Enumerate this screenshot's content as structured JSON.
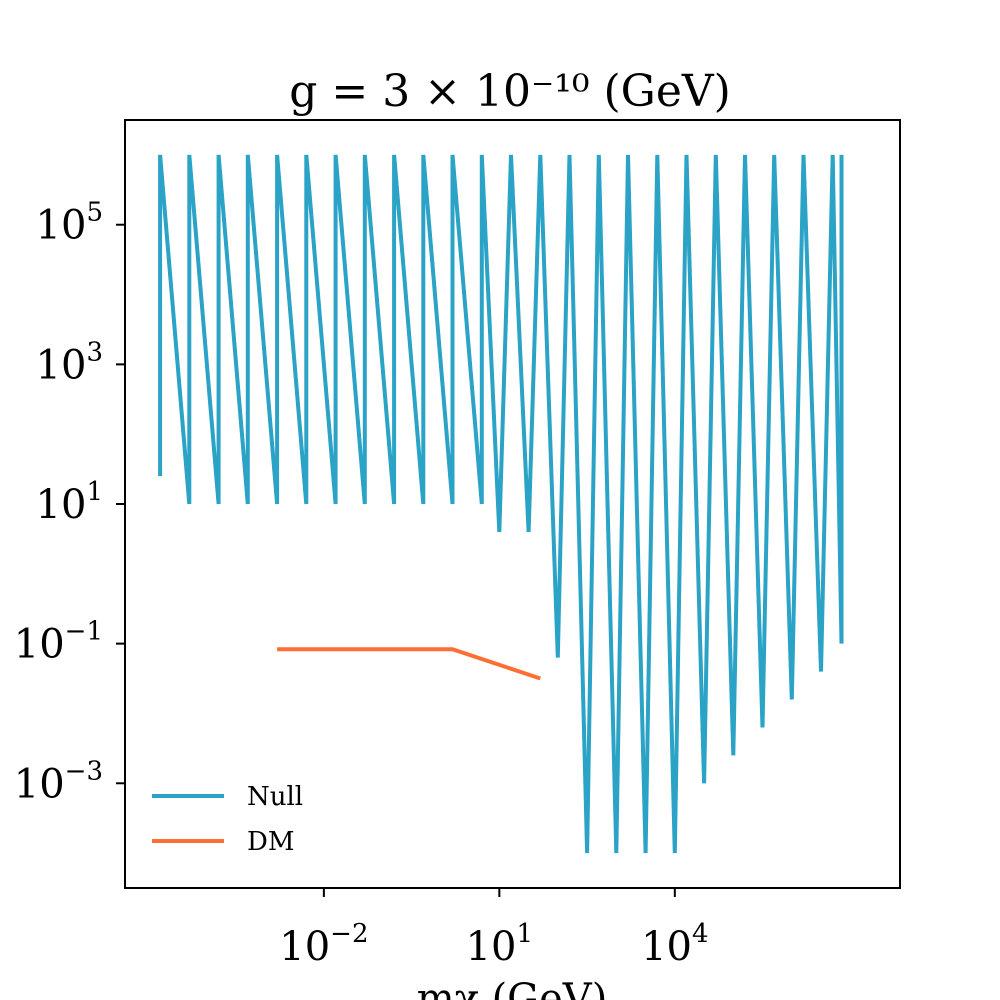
{
  "chart_data": {
    "type": "line",
    "title": "g = 3 × 10⁻¹⁰ (GeV)",
    "xlabel": "mχ (GeV)",
    "ylabel": "",
    "x_scale": "log",
    "y_scale": "log",
    "xlim_log10": [
      -5.4,
      7.85
    ],
    "ylim_log10": [
      -4.5,
      6.5
    ],
    "x_ticks": [
      {
        "log10": -2,
        "base": "10",
        "exp": "−2"
      },
      {
        "log10": 1,
        "base": "10",
        "exp": "1"
      },
      {
        "log10": 4,
        "base": "10",
        "exp": "4"
      }
    ],
    "y_ticks": [
      {
        "log10": 5,
        "base": "10",
        "exp": "5"
      },
      {
        "log10": 3,
        "base": "10",
        "exp": "3"
      },
      {
        "log10": 1,
        "base": "10",
        "exp": "1"
      },
      {
        "log10": -1,
        "base": "10",
        "exp": "−1"
      },
      {
        "log10": -3,
        "base": "10",
        "exp": "−3"
      }
    ],
    "legend_position": "lower-left",
    "grid": false,
    "series": [
      {
        "name": "Null",
        "color": "#2aa3c6",
        "points_log10": [
          [
            -4.8,
            1.4
          ],
          [
            -4.8,
            6.0
          ],
          [
            -4.3,
            1.0
          ],
          [
            -4.3,
            6.0
          ],
          [
            -3.8,
            1.0
          ],
          [
            -3.8,
            6.0
          ],
          [
            -3.3,
            1.0
          ],
          [
            -3.3,
            6.0
          ],
          [
            -2.8,
            1.0
          ],
          [
            -2.8,
            6.0
          ],
          [
            -2.3,
            1.0
          ],
          [
            -2.3,
            6.0
          ],
          [
            -1.8,
            1.0
          ],
          [
            -1.8,
            6.0
          ],
          [
            -1.3,
            1.0
          ],
          [
            -1.3,
            6.0
          ],
          [
            -0.8,
            1.0
          ],
          [
            -0.8,
            6.0
          ],
          [
            -0.3,
            1.0
          ],
          [
            -0.3,
            6.0
          ],
          [
            0.2,
            1.0
          ],
          [
            0.2,
            6.0
          ],
          [
            0.7,
            1.0
          ],
          [
            0.7,
            6.0
          ],
          [
            1.0,
            0.6
          ],
          [
            1.2,
            6.0
          ],
          [
            1.5,
            0.6
          ],
          [
            1.7,
            6.0
          ],
          [
            2.0,
            -1.2
          ],
          [
            2.2,
            6.0
          ],
          [
            2.5,
            -4.0
          ],
          [
            2.7,
            6.0
          ],
          [
            3.0,
            -4.0
          ],
          [
            3.2,
            6.0
          ],
          [
            3.5,
            -4.0
          ],
          [
            3.7,
            6.0
          ],
          [
            4.0,
            -4.0
          ],
          [
            4.2,
            6.0
          ],
          [
            4.5,
            -3.0
          ],
          [
            4.7,
            6.0
          ],
          [
            5.0,
            -2.6
          ],
          [
            5.2,
            6.0
          ],
          [
            5.5,
            -2.2
          ],
          [
            5.7,
            6.0
          ],
          [
            6.0,
            -1.8
          ],
          [
            6.2,
            6.0
          ],
          [
            6.5,
            -1.4
          ],
          [
            6.7,
            6.0
          ],
          [
            6.85,
            -1.0
          ],
          [
            6.85,
            6.0
          ]
        ]
      },
      {
        "name": "DM",
        "color": "#ff6f33",
        "points_log10": [
          [
            -2.8,
            -1.08
          ],
          [
            0.2,
            -1.08
          ],
          [
            1.7,
            -1.5
          ]
        ]
      }
    ]
  }
}
